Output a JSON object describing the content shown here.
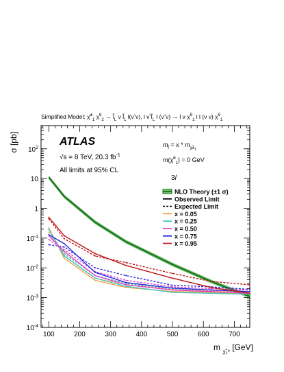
{
  "chart_data": {
    "type": "line",
    "title": "Simplified Model: χ̃₁± χ̃₂⁰ → l̃L ν l̃L l(ν̃ ν), l ν̃ l̃L l (ν̃ ν) → l ν χ̃₁⁰ l l (ν ν) χ̃₁⁰",
    "xlabel": "m",
    "xlabel_sub": "χ̃₂⁰",
    "xlabel_unit": "[GeV]",
    "ylabel": "σ [pb]",
    "xlim": [
      75,
      750
    ],
    "ylim": [
      0.0001,
      600
    ],
    "yscale": "log",
    "x_ticks": [
      "100",
      "200",
      "300",
      "400",
      "500",
      "600",
      "700"
    ],
    "y_ticks": [
      "10-4",
      "10-3",
      "10-2",
      "10-1",
      "1",
      "10",
      "102"
    ],
    "annotations": {
      "atlas": "ATLAS",
      "energy": "√s = 8 TeV, 20.3 fb-1",
      "cl": "All limits at 95% CL",
      "mass_rel": "m_l̃ = x * m_χ̃₁±",
      "lsp": "m(χ̃₁⁰) = 0 GeV",
      "channel": "3l"
    },
    "legend_placement": "right",
    "series": [
      {
        "name": "NLO Theory (±1 σ)",
        "color": "#1f7a1f",
        "style": "band",
        "x": [
          100,
          150,
          250,
          350,
          500,
          625,
          750
        ],
        "values": [
          11,
          2.5,
          0.34,
          0.075,
          0.013,
          0.0035,
          0.0011
        ]
      },
      {
        "name": "x = 0.05",
        "color": "#f0a04a",
        "style": "observed",
        "x": [
          100,
          150,
          250,
          350,
          500,
          625,
          750
        ],
        "values": [
          0.22,
          0.021,
          0.0038,
          0.0022,
          0.0016,
          0.0015,
          0.0013
        ]
      },
      {
        "name": "x = 0.05 expected",
        "color": "#f0a04a",
        "style": "expected",
        "x": [
          100,
          150,
          250,
          350,
          500,
          625,
          750
        ],
        "values": [
          0.16,
          0.026,
          0.0045,
          0.0028,
          0.0019,
          0.0017,
          0.0015
        ]
      },
      {
        "name": "x = 0.25",
        "color": "#3cc6b8",
        "style": "observed",
        "x": [
          100,
          150,
          250,
          350,
          500,
          625,
          750
        ],
        "values": [
          0.2,
          0.025,
          0.0045,
          0.0024,
          0.0015,
          0.0014,
          0.0013
        ]
      },
      {
        "name": "x = 0.25 expected",
        "color": "#3cc6b8",
        "style": "expected",
        "x": [
          100,
          150,
          250,
          350,
          500,
          625,
          750
        ],
        "values": [
          0.13,
          0.03,
          0.0055,
          0.003,
          0.002,
          0.0018,
          0.0016
        ]
      },
      {
        "name": "x = 0.50",
        "color": "#e040c8",
        "style": "observed",
        "x": [
          100,
          150,
          250,
          350,
          500,
          625,
          750
        ],
        "values": [
          0.12,
          0.035,
          0.0055,
          0.0027,
          0.0018,
          0.0016,
          0.0014
        ]
      },
      {
        "name": "x = 0.50 expected",
        "color": "#e040c8",
        "style": "expected",
        "x": [
          100,
          150,
          250,
          350,
          500,
          625,
          750
        ],
        "values": [
          0.09,
          0.04,
          0.0075,
          0.0038,
          0.0023,
          0.002,
          0.0018
        ]
      },
      {
        "name": "x = 0.75",
        "color": "#2a2ae0",
        "style": "observed",
        "x": [
          100,
          150,
          250,
          350,
          500,
          625,
          750
        ],
        "values": [
          0.13,
          0.065,
          0.007,
          0.0032,
          0.0021,
          0.0018,
          0.0016
        ]
      },
      {
        "name": "x = 0.75 expected",
        "color": "#2a2ae0",
        "style": "expected",
        "x": [
          100,
          150,
          250,
          350,
          500,
          625,
          750
        ],
        "values": [
          0.06,
          0.05,
          0.01,
          0.0055,
          0.0026,
          0.0023,
          0.0019
        ]
      },
      {
        "name": "x = 0.95",
        "color": "#c01010",
        "style": "observed",
        "x": [
          100,
          150,
          250,
          350,
          500,
          625,
          750
        ],
        "values": [
          0.5,
          0.12,
          0.03,
          0.012,
          0.0045,
          0.0022,
          0.0014
        ]
      },
      {
        "name": "x = 0.95 expected",
        "color": "#c01010",
        "style": "expected",
        "x": [
          100,
          150,
          250,
          350,
          500,
          625,
          750
        ],
        "values": [
          0.45,
          0.095,
          0.025,
          0.015,
          0.0065,
          0.0035,
          0.0027
        ]
      }
    ],
    "legend": [
      {
        "label": "NLO Theory (±1 σ)",
        "kind": "band",
        "color": "#1f7a1f"
      },
      {
        "label": "Observed Limit",
        "kind": "solid",
        "color": "#000000"
      },
      {
        "label": "Expected Limit",
        "kind": "dashed",
        "color": "#000000"
      },
      {
        "label": "x = 0.05",
        "kind": "solid",
        "color": "#f0a04a"
      },
      {
        "label": "x = 0.25",
        "kind": "solid",
        "color": "#3cc6b8"
      },
      {
        "label": "x = 0.50",
        "kind": "solid",
        "color": "#e040c8"
      },
      {
        "label": "x = 0.75",
        "kind": "solid",
        "color": "#2a2ae0"
      },
      {
        "label": "x = 0.95",
        "kind": "solid",
        "color": "#c01010"
      }
    ]
  }
}
